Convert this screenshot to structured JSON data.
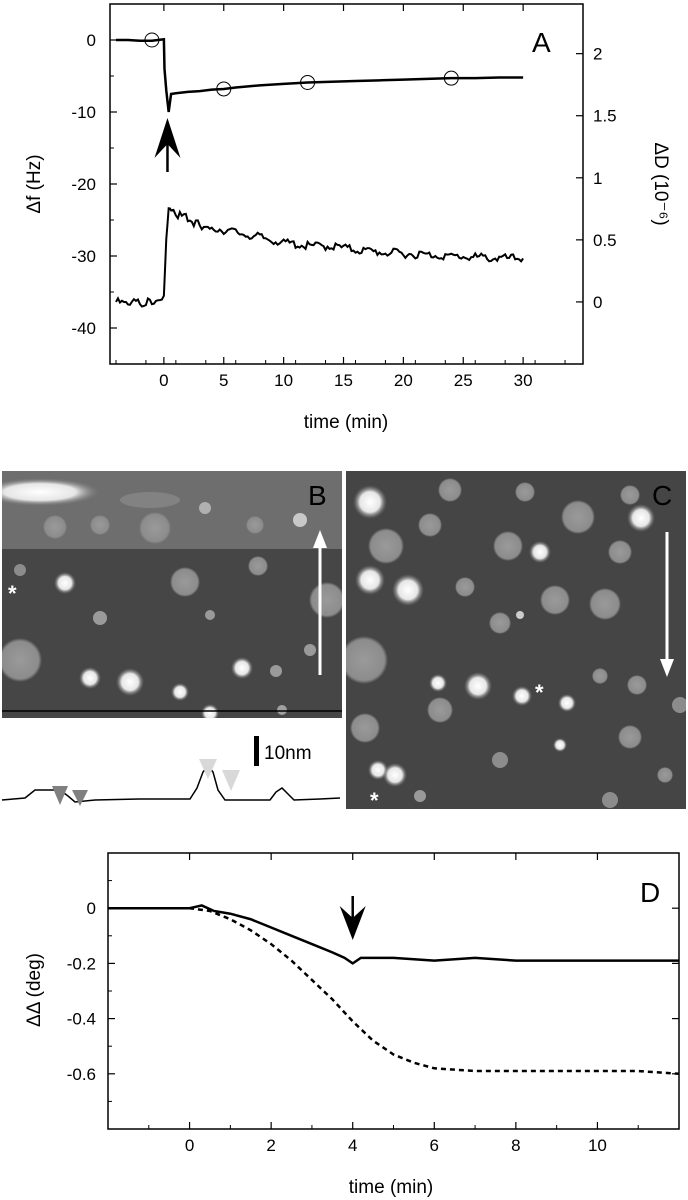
{
  "chart_data": [
    {
      "panel": "A",
      "type": "line",
      "xlabel": "time (min)",
      "ylabel_left": "Δf (Hz)",
      "ylabel_right": "ΔD (10⁻⁶)",
      "xlim": [
        -4.5,
        35
      ],
      "ylim_left": [
        -45,
        5
      ],
      "ylim_right": [
        -0.5,
        2.4
      ],
      "x_ticks": [
        0,
        5,
        10,
        15,
        20,
        25,
        30
      ],
      "y_ticks_left": [
        0,
        -10,
        -20,
        -30,
        -40
      ],
      "y_ticks_right": [
        0,
        0.5,
        1,
        1.5,
        2
      ],
      "series": [
        {
          "axis": "left",
          "x": [
            -4,
            -3,
            -2,
            -1,
            -0.5,
            0,
            0.05,
            0.2,
            0.4,
            0.6,
            1,
            2,
            3,
            4,
            5,
            6,
            8,
            10,
            12,
            14,
            16,
            18,
            20,
            22,
            24,
            26,
            28,
            30
          ],
          "y": [
            0,
            0,
            -0.1,
            -0.1,
            0,
            0.1,
            -4,
            -7,
            -10,
            -7.5,
            -7.4,
            -7.2,
            -7.1,
            -6.9,
            -6.8,
            -6.6,
            -6.3,
            -6.1,
            -5.9,
            -5.8,
            -5.7,
            -5.6,
            -5.5,
            -5.4,
            -5.3,
            -5.3,
            -5.2,
            -5.2
          ],
          "markers_x": [
            -1,
            5,
            12,
            24
          ],
          "markers_y": [
            0,
            -6.8,
            -5.9,
            -5.3
          ]
        },
        {
          "axis": "right",
          "x": [
            -4,
            -3,
            -2,
            -1,
            -0.5,
            0,
            0.2,
            0.4,
            0.6,
            1,
            2,
            3,
            4,
            6,
            8,
            10,
            12,
            14,
            16,
            18,
            20,
            22,
            24,
            26,
            28,
            30
          ],
          "y": [
            0.0,
            -0.02,
            0.0,
            -0.01,
            0.02,
            0.05,
            0.5,
            0.75,
            0.72,
            0.7,
            0.67,
            0.62,
            0.6,
            0.56,
            0.52,
            0.48,
            0.45,
            0.45,
            0.42,
            0.4,
            0.39,
            0.38,
            0.37,
            0.36,
            0.35,
            0.35
          ]
        }
      ],
      "arrow_x": 0.3,
      "panel_label": "A"
    },
    {
      "panel": "B",
      "type": "image",
      "panel_label": "B",
      "scale_bar_label": "10nm",
      "scan_arrow": "up",
      "star_marker": "*"
    },
    {
      "panel": "C",
      "type": "image",
      "panel_label": "C",
      "scan_arrow": "down",
      "star_marker": "*"
    },
    {
      "panel": "D",
      "type": "line",
      "xlabel": "time (min)",
      "ylabel": "ΔΔ (deg)",
      "xlim": [
        -2,
        12
      ],
      "ylim": [
        -0.8,
        0.2
      ],
      "x_ticks": [
        0,
        2,
        4,
        6,
        8,
        10
      ],
      "y_ticks": [
        0,
        -0.2,
        -0.4,
        -0.6
      ],
      "series": [
        {
          "style": "solid",
          "x": [
            -2,
            -1,
            0,
            0.3,
            0.6,
            1,
            1.5,
            2,
            2.5,
            3,
            3.5,
            3.8,
            4,
            4.2,
            4.5,
            5,
            6,
            7,
            8,
            9,
            10,
            11,
            12
          ],
          "y": [
            0,
            0,
            0,
            0.01,
            -0.01,
            -0.02,
            -0.04,
            -0.07,
            -0.1,
            -0.13,
            -0.16,
            -0.18,
            -0.2,
            -0.18,
            -0.18,
            -0.18,
            -0.19,
            -0.18,
            -0.19,
            -0.19,
            -0.19,
            -0.19,
            -0.19
          ]
        },
        {
          "style": "dashed",
          "x": [
            -2,
            -1,
            0,
            0.5,
            1,
            1.5,
            2,
            2.5,
            3,
            3.5,
            4,
            4.5,
            5,
            5.5,
            6,
            7,
            8,
            9,
            10,
            11,
            12
          ],
          "y": [
            0,
            0,
            0,
            -0.01,
            -0.04,
            -0.08,
            -0.13,
            -0.19,
            -0.26,
            -0.33,
            -0.41,
            -0.48,
            -0.53,
            -0.56,
            -0.58,
            -0.59,
            -0.59,
            -0.59,
            -0.59,
            -0.59,
            -0.6
          ]
        }
      ],
      "arrow_x": 4,
      "panel_label": "D"
    }
  ]
}
